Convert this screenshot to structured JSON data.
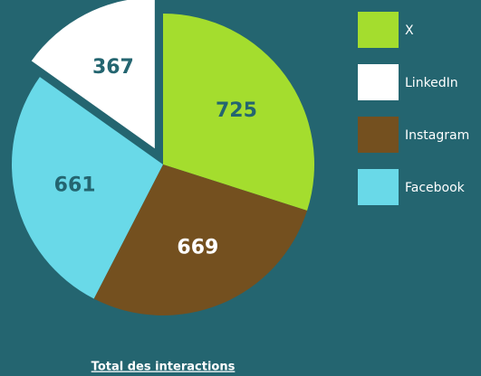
{
  "chart_data": {
    "type": "pie",
    "title": "Total des interactions",
    "categories": [
      "X",
      "LinkedIn",
      "Instagram",
      "Facebook"
    ],
    "values": [
      725,
      367,
      669,
      661
    ],
    "colors": [
      "#a4dd2e",
      "#ffffff",
      "#74501f",
      "#69d9e8"
    ],
    "legend": "right"
  }
}
